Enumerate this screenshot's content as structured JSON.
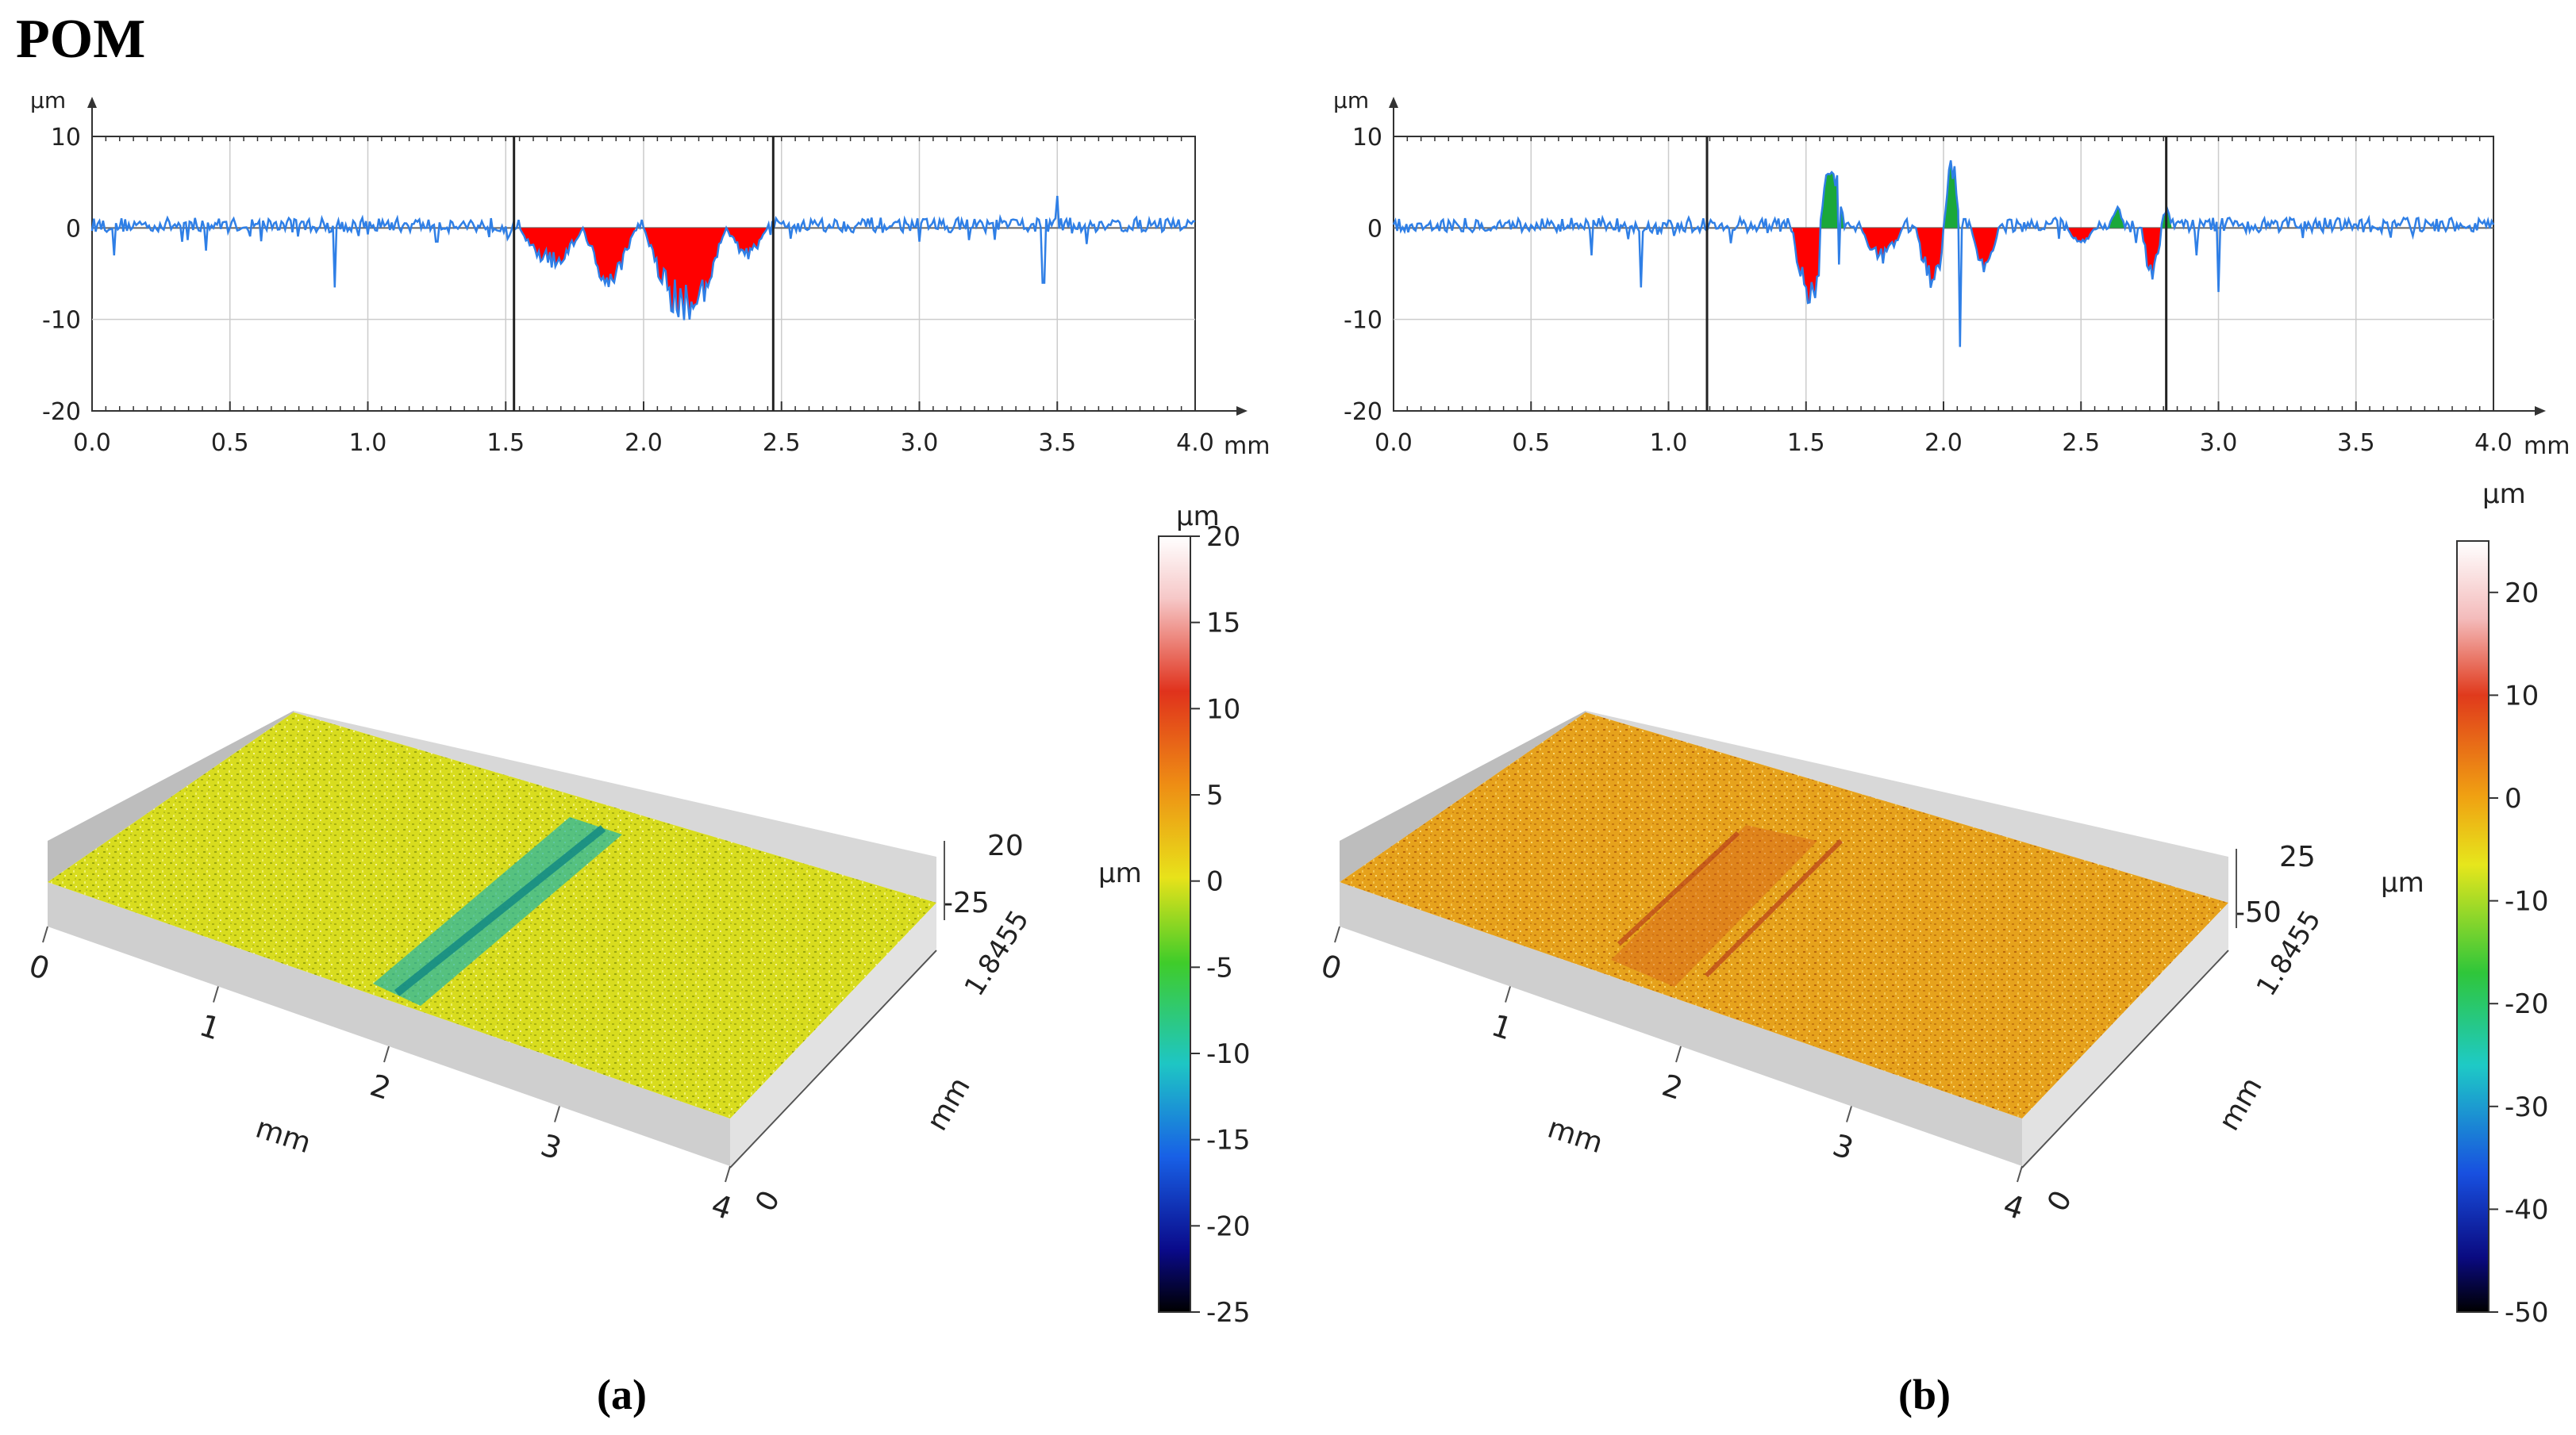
{
  "figure": {
    "material": "POM",
    "panel_labels": [
      "(a)",
      "(b)"
    ]
  },
  "colors": {
    "profile_line": "#2f7fe6",
    "valley_fill": "#ff0000",
    "peak_fill": "#1aa83a",
    "grid": "#cccccc"
  },
  "chart_data": [
    {
      "type": "line",
      "panel": "a",
      "ylabel": "µm",
      "xlabel": "mm",
      "xlim": [
        0.0,
        4.0
      ],
      "ylim": [
        -20,
        10
      ],
      "xticks": [
        "0.0",
        "0.5",
        "1.0",
        "1.5",
        "2.0",
        "2.5",
        "3.0",
        "3.5",
        "4.0"
      ],
      "yticks": [
        "10",
        "0",
        "-10",
        "-20"
      ],
      "cursors": [
        1.53,
        2.47
      ],
      "grid": true,
      "profile": {
        "baseline": 0.8,
        "spikes": [
          [
            0.08,
            -3
          ],
          [
            0.88,
            -6.5
          ],
          [
            1.25,
            -1.5
          ],
          [
            3.0,
            -1.5
          ],
          [
            3.45,
            -6
          ],
          [
            3.5,
            3.5
          ]
        ],
        "valleys": [
          [
            1.55,
            1.78,
            -4.5
          ],
          [
            1.78,
            1.97,
            -6.5
          ],
          [
            2.0,
            2.3,
            -11
          ],
          [
            2.3,
            2.45,
            -3.5
          ]
        ],
        "peaks": []
      }
    },
    {
      "type": "line",
      "panel": "b",
      "ylabel": "µm",
      "xlabel": "mm",
      "xlim": [
        0.0,
        4.0
      ],
      "ylim": [
        -20,
        10
      ],
      "xticks": [
        "0.0",
        "0.5",
        "1.0",
        "1.5",
        "2.0",
        "2.5",
        "3.0",
        "3.5",
        "4.0"
      ],
      "yticks": [
        "10",
        "0",
        "-10",
        "-20"
      ],
      "cursors": [
        1.14,
        2.81
      ],
      "grid": true,
      "profile": {
        "baseline": 0.8,
        "spikes": [
          [
            0.72,
            -3
          ],
          [
            0.9,
            -6.5
          ],
          [
            1.62,
            -4
          ],
          [
            2.06,
            -13
          ],
          [
            2.92,
            -3
          ],
          [
            3.0,
            -7
          ]
        ],
        "valleys": [
          [
            1.45,
            1.58,
            -9.5
          ],
          [
            1.7,
            1.85,
            -4
          ],
          [
            1.9,
            2.02,
            -7
          ],
          [
            2.1,
            2.2,
            -5
          ],
          [
            2.45,
            2.55,
            -2
          ],
          [
            2.72,
            2.8,
            -6
          ]
        ],
        "peaks": [
          [
            1.55,
            1.64,
            8
          ],
          [
            2.0,
            2.06,
            8
          ],
          [
            2.6,
            2.66,
            2.5
          ],
          [
            2.79,
            2.83,
            2.5
          ]
        ]
      }
    },
    {
      "type": "heatmap",
      "panel": "a",
      "colorbar": {
        "unit": "µm",
        "min": -25,
        "max": 20,
        "ticks": [
          "20",
          "15",
          "10",
          "5",
          "0",
          "-5",
          "-10",
          "-15",
          "-20",
          "-25"
        ]
      },
      "x_axis": {
        "ticks": [
          "0",
          "1",
          "2",
          "3",
          "4"
        ],
        "label": "mm"
      },
      "y_axis": {
        "ticks": [
          "0",
          "1.8455"
        ],
        "label": "mm"
      },
      "z_axis": {
        "ticks": [
          "20",
          "-25"
        ]
      },
      "surface_color": "yellow-green",
      "groove_color": "teal"
    },
    {
      "type": "heatmap",
      "panel": "b",
      "colorbar": {
        "unit": "µm",
        "min": -50,
        "max": 25,
        "ticks": [
          "20",
          "10",
          "0",
          "-10",
          "-20",
          "-30",
          "-40",
          "-50"
        ]
      },
      "x_axis": {
        "ticks": [
          "0",
          "1",
          "2",
          "3",
          "4"
        ],
        "label": "mm"
      },
      "y_axis": {
        "ticks": [
          "0",
          "1.8455"
        ],
        "label": "mm"
      },
      "z_axis": {
        "ticks": [
          "25",
          "-50"
        ]
      },
      "surface_color": "orange",
      "groove_color": "red-orange"
    }
  ]
}
